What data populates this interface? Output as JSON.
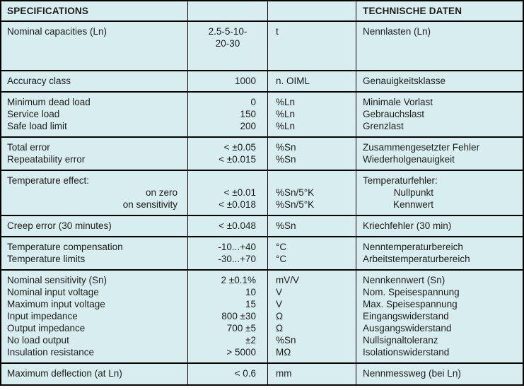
{
  "colors": {
    "background": "#d8edef",
    "border": "#000000",
    "text": "#1c1c1c"
  },
  "header": {
    "left": "SPECIFICATIONS",
    "right": "TECHNISCHE DATEN"
  },
  "rows": [
    {
      "lines": [
        {
          "en": "Nominal capacities (Ln)",
          "value": "2.5-5-10-",
          "unit": "t",
          "de": "Nennlasten (Ln)"
        },
        {
          "en": "",
          "value": "20-30",
          "unit": "",
          "de": ""
        }
      ]
    },
    {
      "lines": [
        {
          "en": "Accuracy class",
          "value": "1000",
          "unit": "n. OIML",
          "de": "Genauigkeitsklasse"
        }
      ]
    },
    {
      "lines": [
        {
          "en": "Minimum dead load",
          "value": "0",
          "unit": "%Ln",
          "de": "Minimale Vorlast"
        },
        {
          "en": "Service load",
          "value": "150",
          "unit": "%Ln",
          "de": "Gebrauchslast"
        },
        {
          "en": "Safe load limit",
          "value": "200",
          "unit": "%Ln",
          "de": "Grenzlast"
        }
      ]
    },
    {
      "lines": [
        {
          "en": "Total error",
          "value": "< ±0.05",
          "unit": "%Sn",
          "de": "Zusammengesetzter Fehler"
        },
        {
          "en": "Repeatability error",
          "value": "< ±0.015",
          "unit": "%Sn",
          "de": "Wiederholgenauigkeit"
        }
      ]
    },
    {
      "lines": [
        {
          "en": "Temperature effect:",
          "value": "",
          "unit": "",
          "de": "Temperaturfehler:"
        },
        {
          "en": "on zero",
          "value": "< ±0.01",
          "unit": "%Sn/5°K",
          "de": "Nullpunkt"
        },
        {
          "en": "on sensitivity",
          "value": "< ±0.018",
          "unit": "%Sn/5°K",
          "de": "Kennwert"
        }
      ]
    },
    {
      "lines": [
        {
          "en": "Creep error (30 minutes)",
          "value": "< ±0.048",
          "unit": "%Sn",
          "de": "Kriechfehler (30 min)"
        }
      ]
    },
    {
      "lines": [
        {
          "en": "Temperature compensation",
          "value": "-10...+40",
          "unit": "°C",
          "de": "Nenntemperaturbereich"
        },
        {
          "en": "Temperature limits",
          "value": "-30...+70",
          "unit": "°C",
          "de": "Arbeitstemperaturbereich"
        }
      ]
    },
    {
      "lines": [
        {
          "en": "Nominal sensitivity (Sn)",
          "value": "2 ±0.1%",
          "unit": "mV/V",
          "de": "Nennkennwert (Sn)"
        },
        {
          "en": "Nominal input voltage",
          "value": "10",
          "unit": "V",
          "de": "Nom. Speisespannung"
        },
        {
          "en": "Maximum input voltage",
          "value": "15",
          "unit": "V",
          "de": "Max. Speisespannung"
        },
        {
          "en": "Input impedance",
          "value": "800 ±30",
          "unit": "Ω",
          "de": "Eingangswiderstand"
        },
        {
          "en": "Output impedance",
          "value": "700 ±5",
          "unit": "Ω",
          "de": "Ausgangswiderstand"
        },
        {
          "en": "No load output",
          "value": "±2",
          "unit": "%Sn",
          "de": "Nullsignaltoleranz"
        },
        {
          "en": "Insulation resistance",
          "value": "> 5000",
          "unit": "MΩ",
          "de": "Isolationswiderstand"
        }
      ]
    },
    {
      "lines": [
        {
          "en": "Maximum deflection (at Ln)",
          "value": "< 0.6",
          "unit": "mm",
          "de": "Nennmessweg (bei Ln)"
        }
      ]
    }
  ]
}
